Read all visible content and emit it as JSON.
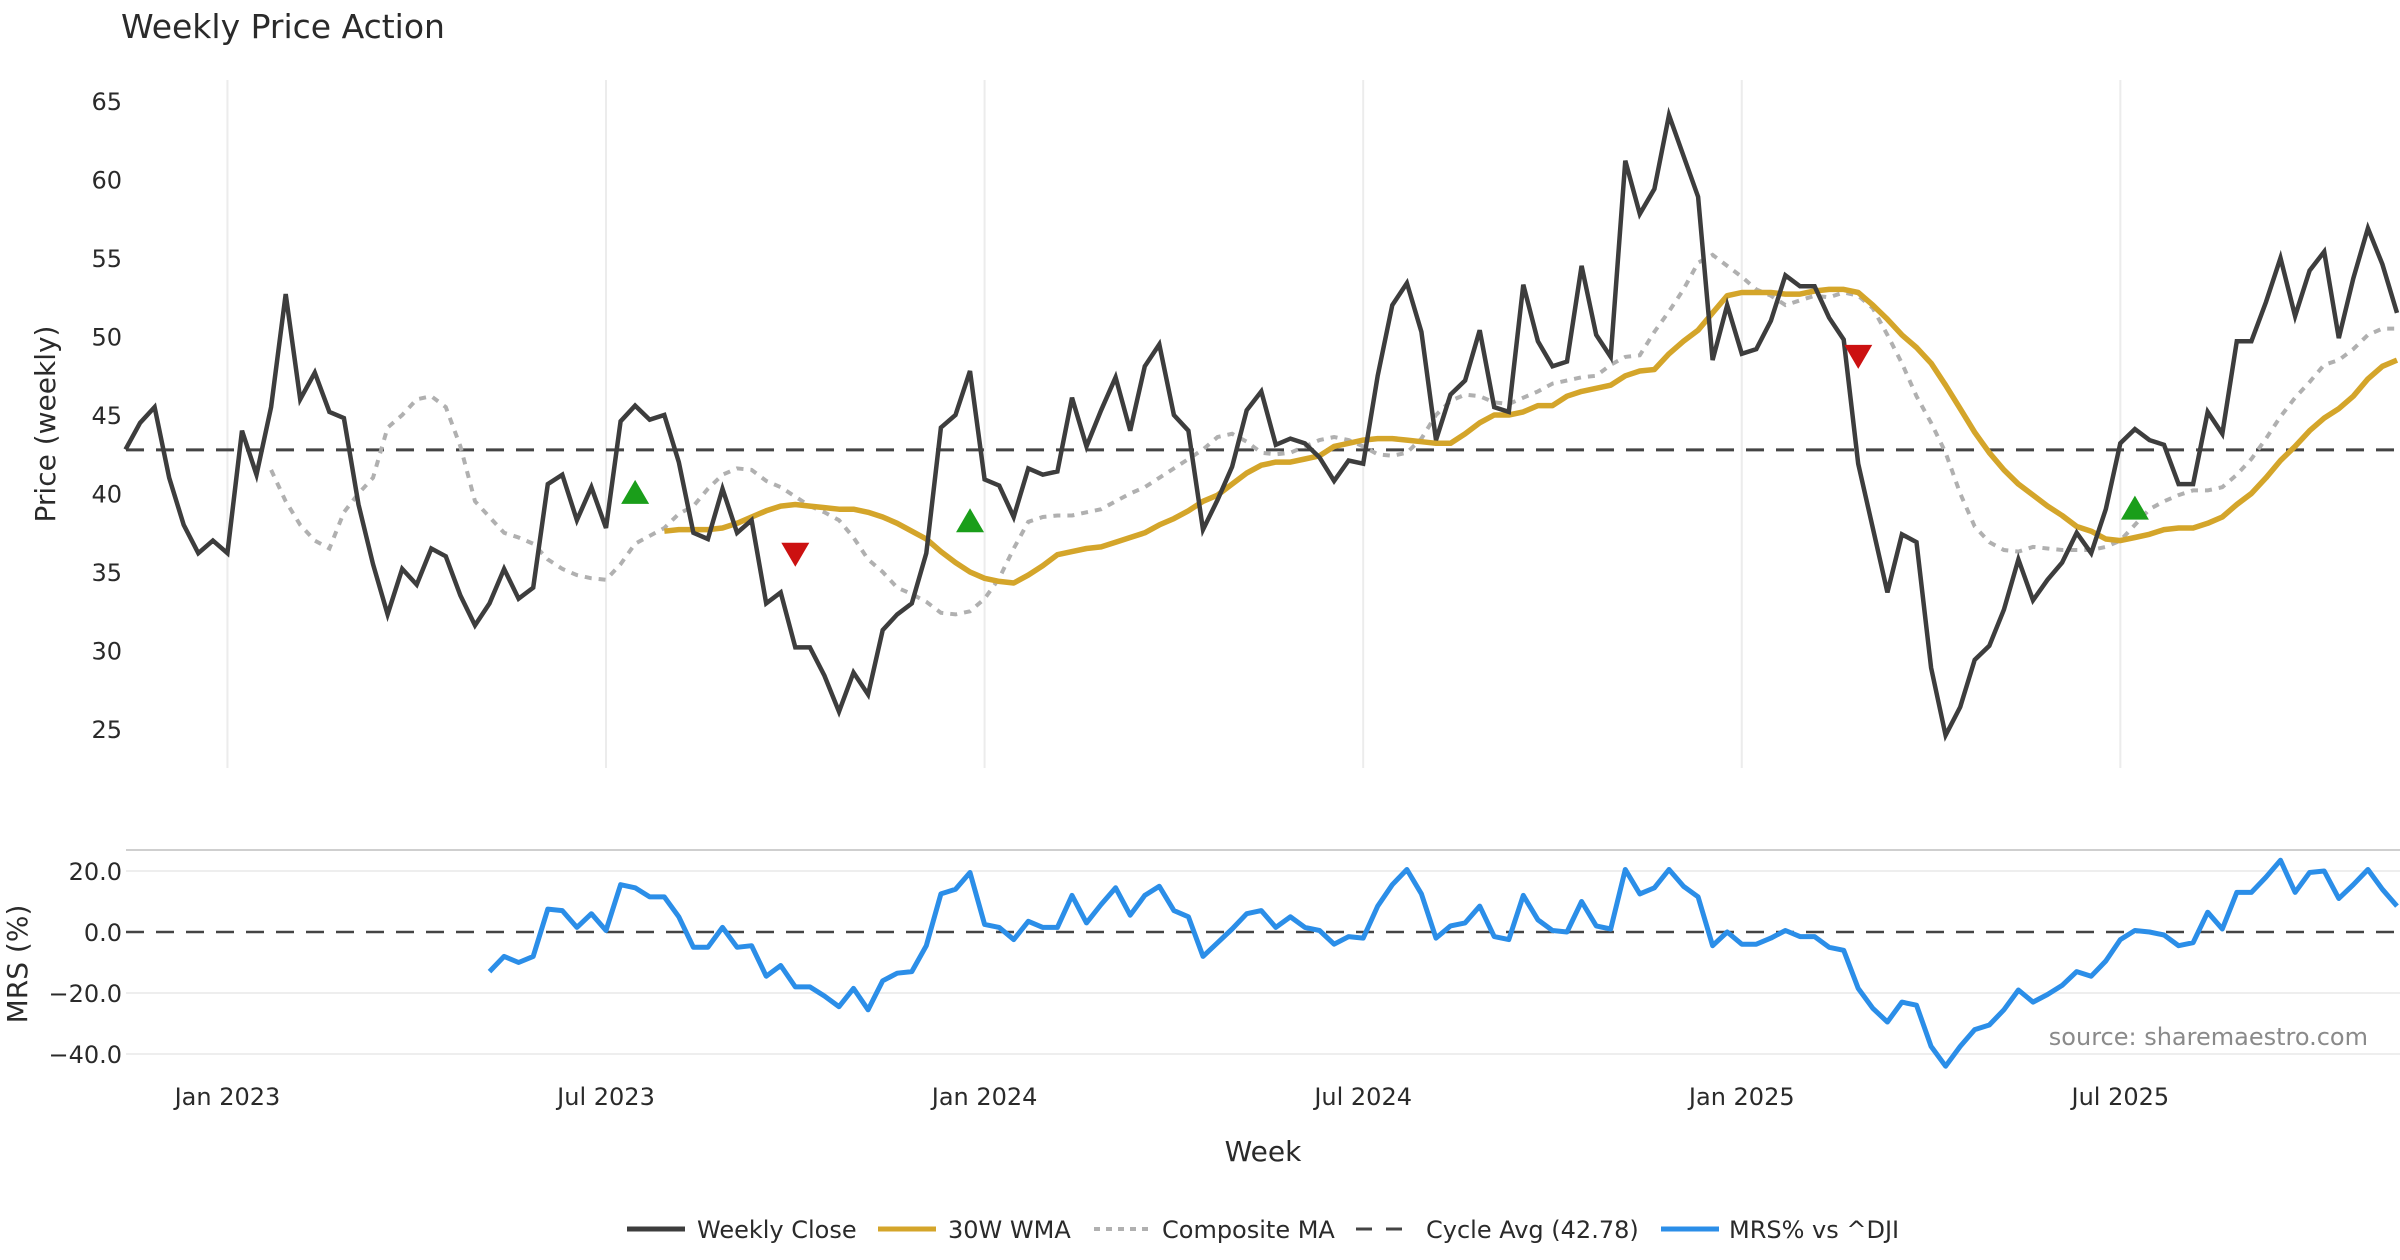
{
  "chart_data": {
    "type": "line",
    "title": "Weekly Price Action",
    "xlabel": "Week",
    "source": "source: sharemaestro.com",
    "x_ticks": [
      "Jan 2023",
      "Jul 2023",
      "Jan 2024",
      "Jul 2024",
      "Jan 2025",
      "Jul 2025"
    ],
    "x_tick_week_index": [
      7,
      33,
      59,
      85,
      111,
      137
    ],
    "price_panel": {
      "ylabel": "Price (weekly)",
      "ylim": [
        22,
        66.5
      ],
      "y_ticks": [
        "25",
        "30",
        "35",
        "40",
        "45",
        "50",
        "55",
        "60",
        "65"
      ],
      "cycle_avg": 42.78
    },
    "mrs_panel": {
      "ylabel": "MRS (%)",
      "ylim": [
        -46,
        27
      ],
      "y_ticks": [
        "20.0",
        "0.0",
        "−20.0",
        "−40.0"
      ],
      "y_tick_values": [
        20,
        0,
        -20,
        -40
      ]
    },
    "series": [
      {
        "name": "Weekly Close",
        "color": "#3d3d3d",
        "values": [
          42.8,
          44.5,
          45.5,
          41,
          38,
          36.2,
          37,
          36.2,
          44,
          41.2,
          45.5,
          52.7,
          46,
          47.7,
          45.2,
          44.8,
          39.3,
          35.5,
          32.3,
          35.2,
          34.2,
          36.5,
          36,
          33.5,
          31.6,
          33,
          35.2,
          33.3,
          34,
          40.6,
          41.2,
          38.3,
          40.4,
          37.8,
          44.6,
          45.6,
          44.7,
          45,
          42,
          37.5,
          37.1,
          40.3,
          37.5,
          38.3,
          33,
          33.7,
          30.2,
          30.2,
          28.4,
          26.1,
          28.6,
          27.2,
          31.3,
          32.3,
          33,
          36.2,
          44.2,
          45,
          47.8,
          40.9,
          40.5,
          38.5,
          41.6,
          41.2,
          41.4,
          46.1,
          43,
          45.3,
          47.4,
          44,
          48.1,
          49.5,
          45,
          44,
          37.7,
          39.6,
          41.7,
          45.3,
          46.5,
          43.1,
          43.5,
          43.2,
          42.3,
          40.8,
          42.1,
          41.9,
          47.5,
          52,
          53.4,
          50.3,
          43.4,
          46.3,
          47.2,
          50.4,
          45.5,
          45.2,
          53.3,
          49.7,
          48.1,
          48.4,
          54.5,
          50.1,
          48.7,
          61.2,
          57.8,
          59.4,
          64.1,
          61.5,
          58.9,
          48.5,
          52,
          48.9,
          49.2,
          51,
          53.9,
          53.2,
          53.2,
          51.2,
          49.8,
          41.9,
          37.8,
          33.7,
          37.4,
          36.9,
          28.9,
          24.6,
          26.4,
          29.4,
          30.3,
          32.6,
          35.8,
          33.2,
          34.5,
          35.6,
          37.5,
          36.2,
          39,
          43.2,
          44.1,
          43.4,
          43.1,
          40.6,
          40.6,
          45.2,
          43.8,
          49.7,
          49.7,
          52.2,
          55,
          51.3,
          54.2,
          55.4,
          49.9,
          53.7,
          56.9,
          54.6,
          51.5
        ]
      },
      {
        "name": "30W WMA",
        "color": "#d4a52a",
        "values": [
          37.6,
          37.7,
          37.7,
          37.7,
          37.8,
          38.1,
          38.5,
          38.9,
          39.2,
          39.3,
          39.2,
          39.1,
          39.0,
          39.0,
          38.8,
          38.5,
          38.1,
          37.6,
          37.1,
          36.3,
          35.6,
          35.0,
          34.6,
          34.4,
          34.3,
          34.8,
          35.4,
          36.1,
          36.3,
          36.5,
          36.6,
          36.9,
          37.2,
          37.5,
          38.0,
          38.4,
          38.9,
          39.5,
          39.9,
          40.6,
          41.3,
          41.8,
          42.0,
          42.0,
          42.2,
          42.4,
          43.0,
          43.2,
          43.4,
          43.5,
          43.5,
          43.4,
          43.3,
          43.2,
          43.2,
          43.8,
          44.5,
          45.0,
          45.0,
          45.2,
          45.6,
          45.6,
          46.2,
          46.5,
          46.7,
          46.9,
          47.5,
          47.8,
          47.9,
          48.9,
          49.7,
          50.4,
          51.5,
          52.6,
          52.8,
          52.8,
          52.8,
          52.7,
          52.7,
          52.9,
          53.0,
          53.0,
          52.8,
          52.0,
          51.1,
          50.1,
          49.3,
          48.3,
          46.9,
          45.4,
          43.9,
          42.6,
          41.5,
          40.6,
          39.9,
          39.2,
          38.6,
          37.9,
          37.6,
          37.1,
          37.0,
          37.2,
          37.4,
          37.7,
          37.8,
          37.8,
          38.1,
          38.5,
          39.3,
          40.0,
          41.0,
          42.1,
          43.0,
          44.0,
          44.8,
          45.4,
          46.2,
          47.3,
          48.1,
          48.5
        ]
      },
      {
        "name": "Composite MA",
        "color": "#b0b0b0",
        "values": [
          41.5,
          39.5,
          38,
          37,
          36.5,
          38.8,
          40,
          41,
          44.2,
          45,
          46,
          46.2,
          45.5,
          43,
          39.5,
          38.5,
          37.5,
          37.2,
          36.8,
          35.8,
          35.2,
          34.8,
          34.6,
          34.5,
          35.5,
          36.8,
          37.3,
          37.8,
          38.7,
          39.2,
          40.3,
          41.2,
          41.6,
          41.5,
          40.8,
          40.4,
          39.8,
          39.2,
          38.8,
          38.3,
          37.2,
          35.8,
          35,
          34,
          33.6,
          33.1,
          32.4,
          32.3,
          32.5,
          33.3,
          34.6,
          36.5,
          38.2,
          38.5,
          38.6,
          38.6,
          38.8,
          39.0,
          39.5,
          40,
          40.4,
          41,
          41.6,
          42.2,
          42.8,
          43.6,
          43.8,
          43.3,
          42.6,
          42.5,
          42.6,
          43,
          43.4,
          43.6,
          43.4,
          43.0,
          42.5,
          42.4,
          42.6,
          43.5,
          45.0,
          45.9,
          46.3,
          46.2,
          45.8,
          45.7,
          46.1,
          46.5,
          47.0,
          47.2,
          47.4,
          47.5,
          48.2,
          48.7,
          48.8,
          50.3,
          51.6,
          53.0,
          54.7,
          55.2,
          54.5,
          53.8,
          53.0,
          52.6,
          52.0,
          52.3,
          52.6,
          52.5,
          52.8,
          52.6,
          51.8,
          50.1,
          48.3,
          46.2,
          44.5,
          42.6,
          40.0,
          37.9,
          36.9,
          36.4,
          36.3,
          36.6,
          36.5,
          36.4,
          36.4,
          36.4,
          36.6,
          37.0,
          38.0,
          39.0,
          39.5,
          39.9,
          40.2,
          40.2,
          40.4,
          41.2,
          42.2,
          43.5,
          44.9,
          46.1,
          47.1,
          48.2,
          48.5,
          49.2,
          50.1,
          50.5,
          50.5
        ]
      },
      {
        "name": "Cycle Avg (42.78)",
        "color": "#444444",
        "value": 42.78
      },
      {
        "name": "MRS% vs ^DJI",
        "color": "#2b8ee8",
        "values": [
          -13,
          -8,
          -10,
          -8,
          7.5,
          7,
          1.5,
          6,
          0.5,
          15.5,
          14.5,
          11.5,
          11.5,
          5,
          -5,
          -5,
          1.5,
          -5,
          -4.5,
          -14.5,
          -11,
          -18,
          -18,
          -21,
          -24.5,
          -18.5,
          -25.5,
          -16,
          -13.5,
          -13,
          -4.5,
          12.5,
          14,
          19.5,
          2.5,
          1.5,
          -2.5,
          3.5,
          1.5,
          1.5,
          12,
          3,
          9,
          14.5,
          5.5,
          12,
          15,
          7,
          5,
          -8,
          -3.5,
          1,
          6,
          7,
          1.5,
          5,
          1.5,
          0.5,
          -4,
          -1.5,
          -2,
          8.5,
          15.5,
          20.5,
          12.5,
          -2,
          2,
          3,
          8.5,
          -1.5,
          -2.5,
          12,
          4,
          0.5,
          0,
          10,
          2,
          1,
          20.5,
          12.5,
          14.5,
          20.5,
          15,
          11.5,
          -4.5,
          0,
          -4,
          -4,
          -2,
          0.5,
          -1.5,
          -1.5,
          -5,
          -6,
          -18.5,
          -25,
          -29.5,
          -23,
          -24,
          -37.5,
          -44,
          -37.5,
          -32,
          -30.5,
          -25.5,
          -19,
          -23,
          -20.5,
          -17.5,
          -13,
          -14.5,
          -9.5,
          -2.5,
          0.5,
          0,
          -1,
          -4.5,
          -3.5,
          6.5,
          1,
          13,
          13,
          18,
          23.5,
          13,
          19.5,
          20,
          11,
          15.5,
          20.5,
          14,
          8.5
        ]
      }
    ],
    "total_weeks": 157,
    "signals": [
      {
        "type": "buy",
        "week_index": 35,
        "price": 40.1,
        "color": "#1a9e1a"
      },
      {
        "type": "sell",
        "week_index": 46,
        "price": 36.1,
        "color": "#cc1111"
      },
      {
        "type": "buy",
        "week_index": 58,
        "price": 38.3,
        "color": "#1a9e1a"
      },
      {
        "type": "sell",
        "week_index": 119,
        "price": 48.7,
        "color": "#cc1111"
      },
      {
        "type": "buy",
        "week_index": 138,
        "price": 39.1,
        "color": "#1a9e1a"
      }
    ],
    "legend_position": "bottom-center",
    "grid": true
  }
}
